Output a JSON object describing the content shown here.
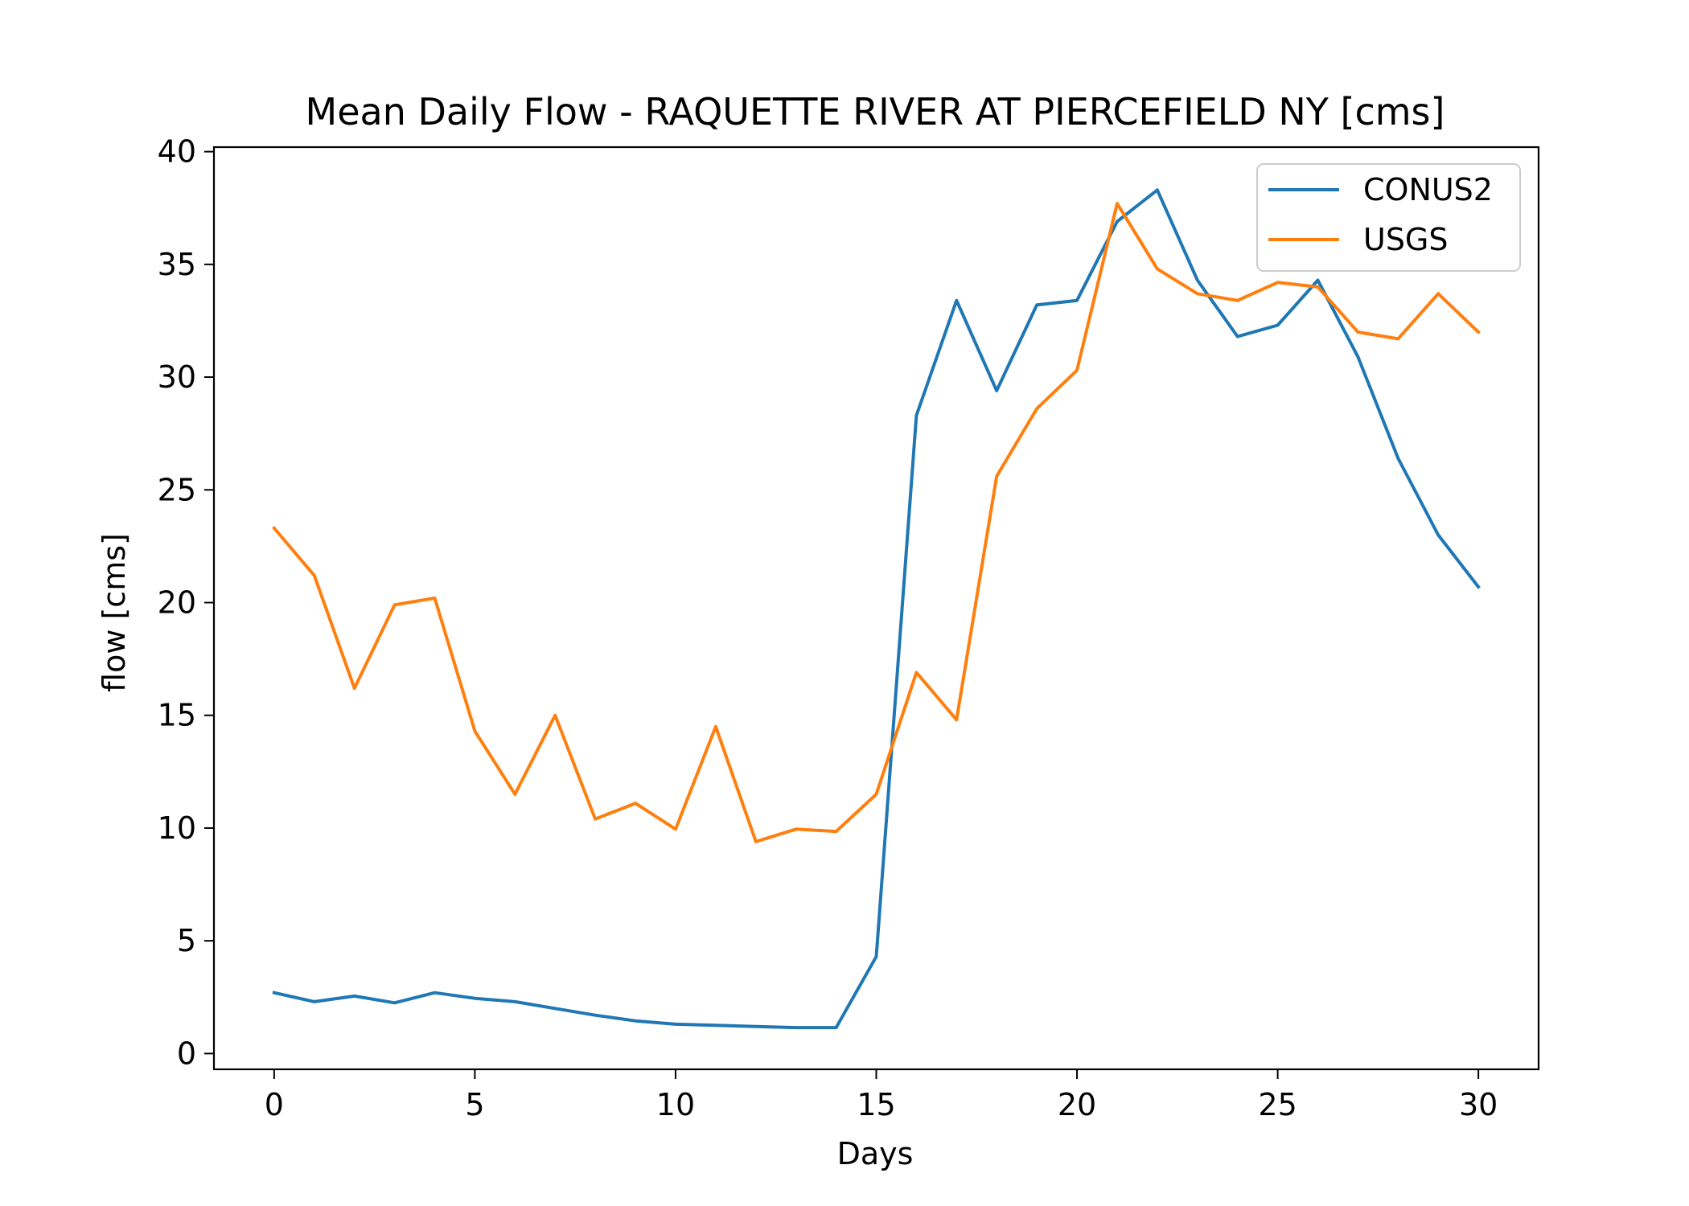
{
  "chart_data": {
    "type": "line",
    "title": "Mean Daily Flow - RAQUETTE RIVER AT PIERCEFIELD NY [cms]",
    "xlabel": "Days",
    "ylabel": "flow [cms]",
    "xlim": [
      -1.5,
      31.5
    ],
    "ylim": [
      -0.7,
      40.2
    ],
    "xticks": [
      0,
      5,
      10,
      15,
      20,
      25,
      30
    ],
    "yticks": [
      0,
      5,
      10,
      15,
      20,
      25,
      30,
      35,
      40
    ],
    "grid": false,
    "legend": "top-right",
    "x": [
      0,
      1,
      2,
      3,
      4,
      5,
      6,
      7,
      8,
      9,
      10,
      11,
      12,
      13,
      14,
      15,
      16,
      17,
      18,
      19,
      20,
      21,
      22,
      23,
      24,
      25,
      26,
      27,
      28,
      29,
      30
    ],
    "series": [
      {
        "name": "CONUS2",
        "color": "#1f77b4",
        "values": [
          2.7,
          2.3,
          2.55,
          2.25,
          2.7,
          2.45,
          2.3,
          2.0,
          1.7,
          1.45,
          1.3,
          1.25,
          1.2,
          1.15,
          1.15,
          4.3,
          28.3,
          33.4,
          29.4,
          33.2,
          33.4,
          36.9,
          38.3,
          34.3,
          31.8,
          32.3,
          34.3,
          30.9,
          26.4,
          23.0,
          20.7
        ]
      },
      {
        "name": "USGS",
        "color": "#ff7f0e",
        "values": [
          23.3,
          21.2,
          16.2,
          19.9,
          20.2,
          14.3,
          11.5,
          15.0,
          10.4,
          11.1,
          9.95,
          14.5,
          9.4,
          9.95,
          9.85,
          11.5,
          16.9,
          14.8,
          25.6,
          28.6,
          30.3,
          37.7,
          34.8,
          33.7,
          33.4,
          34.2,
          34.0,
          32.0,
          31.7,
          33.7,
          32.0
        ]
      }
    ]
  }
}
